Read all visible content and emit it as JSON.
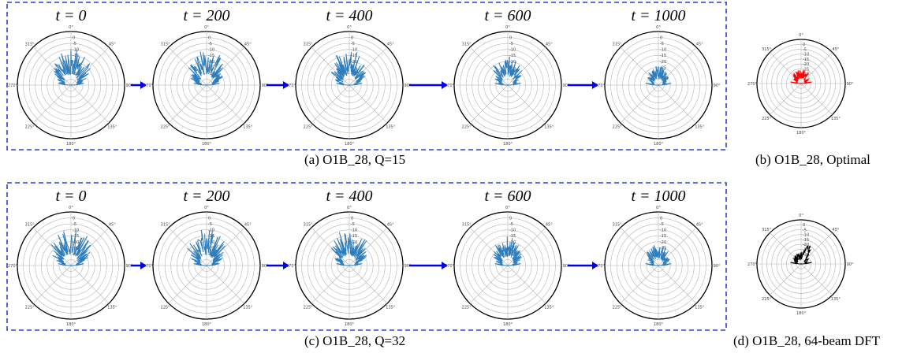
{
  "figure": {
    "rows": [
      {
        "caption": "(a) O1B_28, Q=15",
        "panels": [
          {
            "time_label": "t = 0",
            "spread": 0.95,
            "scale": 0.55,
            "seed": 11
          },
          {
            "time_label": "t = 200",
            "spread": 0.95,
            "scale": 0.52,
            "seed": 23
          },
          {
            "time_label": "t = 400",
            "spread": 0.95,
            "scale": 0.52,
            "seed": 37
          },
          {
            "time_label": "t = 600",
            "spread": 0.95,
            "scale": 0.42,
            "seed": 41
          },
          {
            "time_label": "t = 1000",
            "spread": 0.95,
            "scale": 0.26,
            "seed": 53
          }
        ],
        "reference": {
          "caption": "(b) O1B_28, Optimal",
          "color": "#ff0000",
          "spread": 0.9,
          "scale": 0.24,
          "seed": 67
        }
      },
      {
        "caption": "(c) O1B_28, Q=32",
        "panels": [
          {
            "time_label": "t = 0",
            "spread": 0.95,
            "scale": 0.56,
            "seed": 71
          },
          {
            "time_label": "t = 200",
            "spread": 0.95,
            "scale": 0.54,
            "seed": 83
          },
          {
            "time_label": "t = 400",
            "spread": 0.95,
            "scale": 0.54,
            "seed": 97
          },
          {
            "time_label": "t = 600",
            "spread": 0.95,
            "scale": 0.42,
            "seed": 101
          },
          {
            "time_label": "t = 1000",
            "spread": 0.95,
            "scale": 0.3,
            "seed": 113
          }
        ],
        "reference": {
          "caption": "(d) O1B_28, 64-beam DFT",
          "color": "#000000",
          "spread": 0.55,
          "scale": 0.3,
          "seed": 127
        }
      }
    ],
    "colors": {
      "pattern": "#2e7ebd",
      "arrow": "#0000ee",
      "frame": "#2b3fd6",
      "grid": "#b5b5b5"
    },
    "angle_labels": [
      "0°",
      "315°",
      "270°",
      "225°",
      "180°",
      "135°",
      "90°",
      "45°"
    ],
    "radial_labels": [
      "0",
      "-5",
      "-10",
      "-15",
      "-20",
      "-25",
      "-30"
    ]
  }
}
